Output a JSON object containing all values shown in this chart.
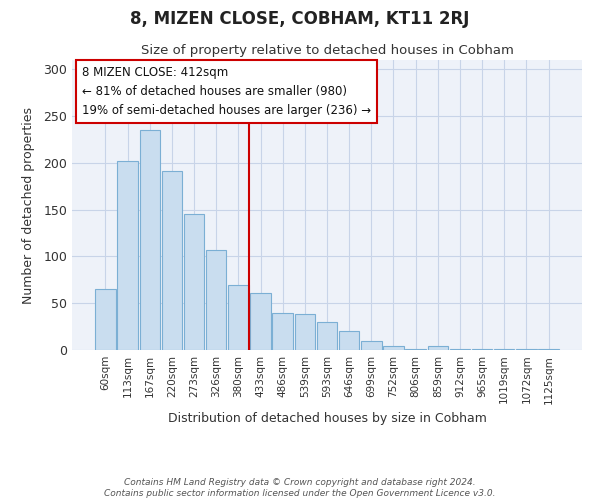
{
  "title": "8, MIZEN CLOSE, COBHAM, KT11 2RJ",
  "subtitle": "Size of property relative to detached houses in Cobham",
  "xlabel": "Distribution of detached houses by size in Cobham",
  "ylabel": "Number of detached properties",
  "bar_labels": [
    "60sqm",
    "113sqm",
    "167sqm",
    "220sqm",
    "273sqm",
    "326sqm",
    "380sqm",
    "433sqm",
    "486sqm",
    "539sqm",
    "593sqm",
    "646sqm",
    "699sqm",
    "752sqm",
    "806sqm",
    "859sqm",
    "912sqm",
    "965sqm",
    "1019sqm",
    "1072sqm",
    "1125sqm"
  ],
  "bar_values": [
    65,
    202,
    235,
    191,
    145,
    107,
    70,
    61,
    40,
    38,
    30,
    20,
    10,
    4,
    1,
    4,
    1,
    1,
    1,
    1,
    1
  ],
  "bar_color": "#c9ddef",
  "bar_edgecolor": "#7bafd4",
  "vline_x": 6.5,
  "vline_color": "#cc0000",
  "annotation_title": "8 MIZEN CLOSE: 412sqm",
  "annotation_line1": "← 81% of detached houses are smaller (980)",
  "annotation_line2": "19% of semi-detached houses are larger (236) →",
  "annotation_box_color": "#ffffff",
  "annotation_box_edgecolor": "#cc0000",
  "ylim": [
    0,
    310
  ],
  "yticks": [
    0,
    50,
    100,
    150,
    200,
    250,
    300
  ],
  "footer1": "Contains HM Land Registry data © Crown copyright and database right 2024.",
  "footer2": "Contains public sector information licensed under the Open Government Licence v3.0.",
  "bg_color": "#ffffff",
  "plot_bg_color": "#eef2f9"
}
